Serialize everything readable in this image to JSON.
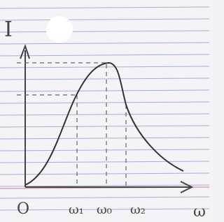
{
  "labels": {
    "y_axis": "I",
    "origin": "O",
    "omega1": "ω₁",
    "omega0": "ω₀",
    "omega2": "ω₂",
    "x_axis": "ω"
  }
}
